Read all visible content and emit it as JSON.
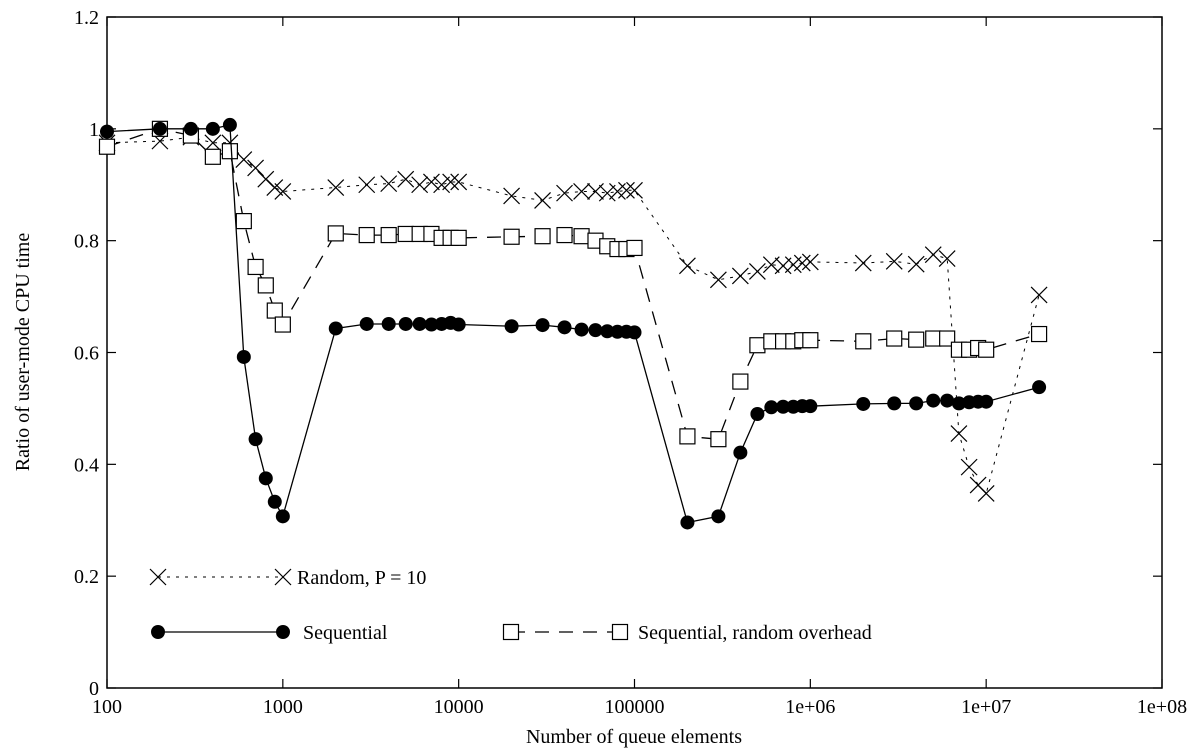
{
  "chart_data": {
    "type": "line",
    "title": "",
    "xlabel": "Number of queue elements",
    "ylabel": "Ratio of user-mode CPU time",
    "x_scale": "log",
    "xlim": [
      100,
      100000000
    ],
    "ylim": [
      0,
      1.2
    ],
    "x_ticks": [
      100,
      1000,
      10000,
      100000,
      1000000,
      10000000,
      100000000
    ],
    "x_tick_labels": [
      "100",
      "1000",
      "10000",
      "100000",
      "1e+06",
      "1e+07",
      "1e+08"
    ],
    "y_ticks": [
      0,
      0.2,
      0.4,
      0.6,
      0.8,
      1,
      1.2
    ],
    "y_tick_labels": [
      "0",
      "0.2",
      "0.4",
      "0.6",
      "0.8",
      "1",
      "1.2"
    ],
    "grid": false,
    "legend_position": "bottom-left",
    "series": [
      {
        "name": "Random, P = 10",
        "marker": "x",
        "line": "dotted",
        "points": [
          [
            100,
            0.975
          ],
          [
            200,
            0.978
          ],
          [
            300,
            0.985
          ],
          [
            400,
            0.975
          ],
          [
            500,
            0.975
          ],
          [
            600,
            0.945
          ],
          [
            700,
            0.93
          ],
          [
            800,
            0.91
          ],
          [
            900,
            0.895
          ],
          [
            1000,
            0.888
          ],
          [
            2000,
            0.895
          ],
          [
            3000,
            0.9
          ],
          [
            4000,
            0.902
          ],
          [
            5000,
            0.91
          ],
          [
            6000,
            0.9
          ],
          [
            7000,
            0.905
          ],
          [
            8000,
            0.9
          ],
          [
            9000,
            0.905
          ],
          [
            10000,
            0.905
          ],
          [
            20000,
            0.88
          ],
          [
            30000,
            0.872
          ],
          [
            40000,
            0.885
          ],
          [
            50000,
            0.888
          ],
          [
            60000,
            0.888
          ],
          [
            70000,
            0.885
          ],
          [
            80000,
            0.888
          ],
          [
            90000,
            0.89
          ],
          [
            100000,
            0.89
          ],
          [
            200000,
            0.755
          ],
          [
            300000,
            0.73
          ],
          [
            400000,
            0.737
          ],
          [
            500000,
            0.745
          ],
          [
            600000,
            0.757
          ],
          [
            700000,
            0.755
          ],
          [
            800000,
            0.757
          ],
          [
            900000,
            0.76
          ],
          [
            1000000,
            0.762
          ],
          [
            2000000,
            0.76
          ],
          [
            3000000,
            0.763
          ],
          [
            4000000,
            0.758
          ],
          [
            5000000,
            0.775
          ],
          [
            6000000,
            0.768
          ],
          [
            7000000,
            0.455
          ],
          [
            8000000,
            0.395
          ],
          [
            9000000,
            0.363
          ],
          [
            10000000,
            0.348
          ],
          [
            20000000,
            0.703
          ]
        ]
      },
      {
        "name": "Sequential",
        "marker": "filled-circle",
        "line": "solid",
        "points": [
          [
            100,
            0.995
          ],
          [
            200,
            1.0
          ],
          [
            300,
            1.0
          ],
          [
            400,
            1.0
          ],
          [
            500,
            1.007
          ],
          [
            600,
            0.592
          ],
          [
            700,
            0.445
          ],
          [
            800,
            0.375
          ],
          [
            900,
            0.333
          ],
          [
            1000,
            0.307
          ],
          [
            2000,
            0.643
          ],
          [
            3000,
            0.651
          ],
          [
            4000,
            0.651
          ],
          [
            5000,
            0.651
          ],
          [
            6000,
            0.651
          ],
          [
            7000,
            0.65
          ],
          [
            8000,
            0.651
          ],
          [
            9000,
            0.653
          ],
          [
            10000,
            0.65
          ],
          [
            20000,
            0.647
          ],
          [
            30000,
            0.649
          ],
          [
            40000,
            0.645
          ],
          [
            50000,
            0.641
          ],
          [
            60000,
            0.64
          ],
          [
            70000,
            0.638
          ],
          [
            80000,
            0.637
          ],
          [
            90000,
            0.637
          ],
          [
            100000,
            0.636
          ],
          [
            200000,
            0.296
          ],
          [
            300000,
            0.307
          ],
          [
            400000,
            0.421
          ],
          [
            500000,
            0.49
          ],
          [
            600000,
            0.502
          ],
          [
            700000,
            0.503
          ],
          [
            800000,
            0.503
          ],
          [
            900000,
            0.504
          ],
          [
            1000000,
            0.504
          ],
          [
            2000000,
            0.508
          ],
          [
            3000000,
            0.509
          ],
          [
            4000000,
            0.509
          ],
          [
            5000000,
            0.514
          ],
          [
            6000000,
            0.514
          ],
          [
            7000000,
            0.509
          ],
          [
            8000000,
            0.511
          ],
          [
            9000000,
            0.512
          ],
          [
            10000000,
            0.512
          ],
          [
            20000000,
            0.538
          ]
        ]
      },
      {
        "name": "Sequential, random overhead",
        "marker": "open-square",
        "line": "dashed",
        "points": [
          [
            100,
            0.968
          ],
          [
            200,
            1.0
          ],
          [
            300,
            0.988
          ],
          [
            400,
            0.95
          ],
          [
            500,
            0.96
          ],
          [
            600,
            0.835
          ],
          [
            700,
            0.753
          ],
          [
            800,
            0.72
          ],
          [
            900,
            0.675
          ],
          [
            1000,
            0.65
          ],
          [
            2000,
            0.813
          ],
          [
            3000,
            0.81
          ],
          [
            4000,
            0.81
          ],
          [
            5000,
            0.812
          ],
          [
            6000,
            0.812
          ],
          [
            7000,
            0.812
          ],
          [
            8000,
            0.805
          ],
          [
            9000,
            0.805
          ],
          [
            10000,
            0.805
          ],
          [
            20000,
            0.807
          ],
          [
            30000,
            0.808
          ],
          [
            40000,
            0.81
          ],
          [
            50000,
            0.808
          ],
          [
            60000,
            0.8
          ],
          [
            70000,
            0.79
          ],
          [
            80000,
            0.785
          ],
          [
            90000,
            0.785
          ],
          [
            100000,
            0.787
          ],
          [
            200000,
            0.45
          ],
          [
            300000,
            0.445
          ],
          [
            400000,
            0.548
          ],
          [
            500000,
            0.613
          ],
          [
            600000,
            0.62
          ],
          [
            700000,
            0.62
          ],
          [
            800000,
            0.62
          ],
          [
            900000,
            0.622
          ],
          [
            1000000,
            0.622
          ],
          [
            2000000,
            0.62
          ],
          [
            3000000,
            0.625
          ],
          [
            4000000,
            0.623
          ],
          [
            5000000,
            0.625
          ],
          [
            6000000,
            0.625
          ],
          [
            7000000,
            0.605
          ],
          [
            8000000,
            0.605
          ],
          [
            9000000,
            0.608
          ],
          [
            10000000,
            0.605
          ],
          [
            20000000,
            0.633
          ]
        ]
      }
    ]
  }
}
